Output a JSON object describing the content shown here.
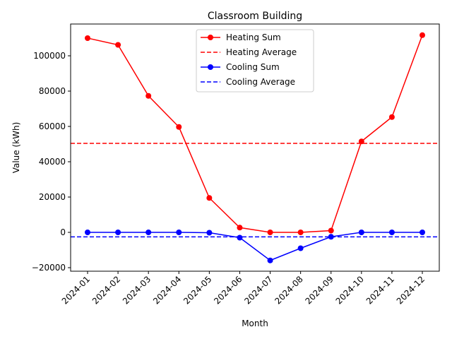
{
  "chart_data": {
    "type": "line",
    "title": "Classroom Building",
    "xlabel": "Month",
    "ylabel": "Value (kWh)",
    "categories": [
      "2024-01",
      "2024-02",
      "2024-03",
      "2024-04",
      "2024-05",
      "2024-06",
      "2024-07",
      "2024-08",
      "2024-09",
      "2024-10",
      "2024-11",
      "2024-12"
    ],
    "ylim": [
      -22000,
      118000
    ],
    "yticks": [
      -20000,
      0,
      20000,
      40000,
      60000,
      80000,
      100000
    ],
    "grid": false,
    "legend_position": "top-center",
    "series": [
      {
        "name": "Heating Sum",
        "color": "#ff0000",
        "style": "solid-marker",
        "values": [
          110000,
          106200,
          77300,
          59700,
          19500,
          2700,
          0,
          0,
          1000,
          51500,
          65300,
          111700
        ]
      },
      {
        "name": "Cooling Sum",
        "color": "#0000ff",
        "style": "solid-marker",
        "values": [
          0,
          0,
          0,
          0,
          -200,
          -3000,
          -15900,
          -9000,
          -2500,
          0,
          0,
          0
        ]
      }
    ],
    "reference_lines": [
      {
        "name": "Heating Average",
        "color": "#ff0000",
        "style": "dashed",
        "value": 50400
      },
      {
        "name": "Cooling Average",
        "color": "#0000ff",
        "style": "dashed",
        "value": -2550
      }
    ],
    "legend": [
      {
        "label": "Heating Sum",
        "color": "#ff0000",
        "style": "solid-marker"
      },
      {
        "label": "Heating Average",
        "color": "#ff0000",
        "style": "dashed"
      },
      {
        "label": "Cooling Sum",
        "color": "#0000ff",
        "style": "solid-marker"
      },
      {
        "label": "Cooling Average",
        "color": "#0000ff",
        "style": "dashed"
      }
    ]
  }
}
